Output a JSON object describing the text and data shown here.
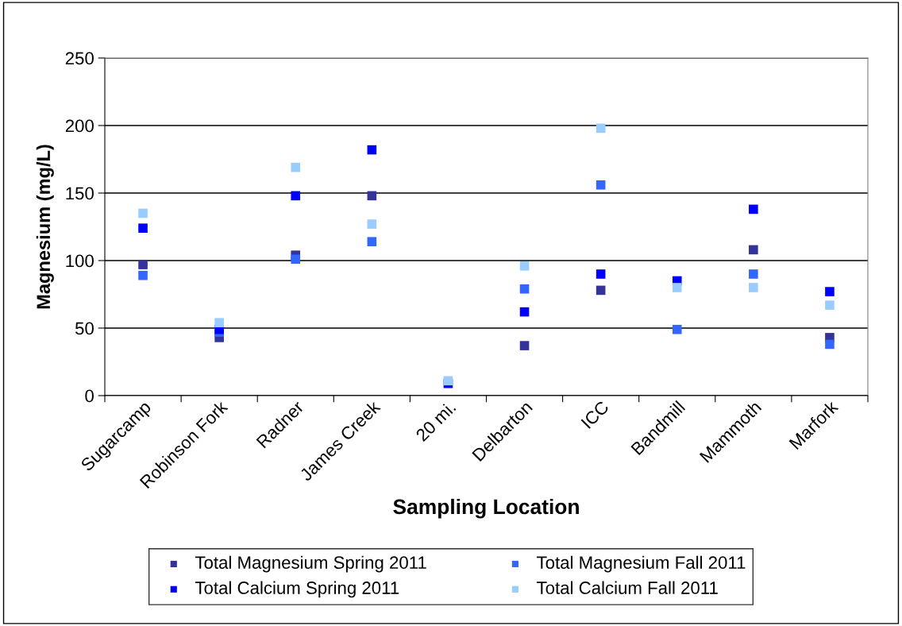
{
  "chart_data": {
    "type": "scatter",
    "xlabel": "Sampling Location",
    "ylabel": "Magnesium (mg/L)",
    "categories": [
      "Sugarcamp",
      "Robinson Fork",
      "Radner",
      "James Creek",
      "20 mi.",
      "Delbarton",
      "ICC",
      "Bandmill",
      "Mammoth",
      "Marfork"
    ],
    "series": [
      {
        "name": "Total Magnesium Spring 2011",
        "color": "#333399",
        "values": [
          97,
          43,
          104,
          148,
          null,
          37,
          78,
          null,
          108,
          43
        ]
      },
      {
        "name": "Total Magnesium Fall 2011",
        "color": "#3366ff",
        "values": [
          89,
          47,
          101,
          114,
          null,
          79,
          156,
          49,
          90,
          38
        ]
      },
      {
        "name": "Total Calcium Spring 2011",
        "color": "#0000ff",
        "values": [
          124,
          49,
          148,
          182,
          9,
          62,
          90,
          85,
          138,
          77
        ]
      },
      {
        "name": "Total Calcium Fall 2011",
        "color": "#99ccff",
        "values": [
          135,
          54,
          169,
          127,
          11,
          96,
          198,
          80,
          80,
          67
        ]
      }
    ],
    "ylim": [
      0,
      250
    ],
    "yticks": [
      0,
      50,
      100,
      150,
      200,
      250
    ],
    "grid": "y",
    "legend": "bottom",
    "marker": "square"
  }
}
